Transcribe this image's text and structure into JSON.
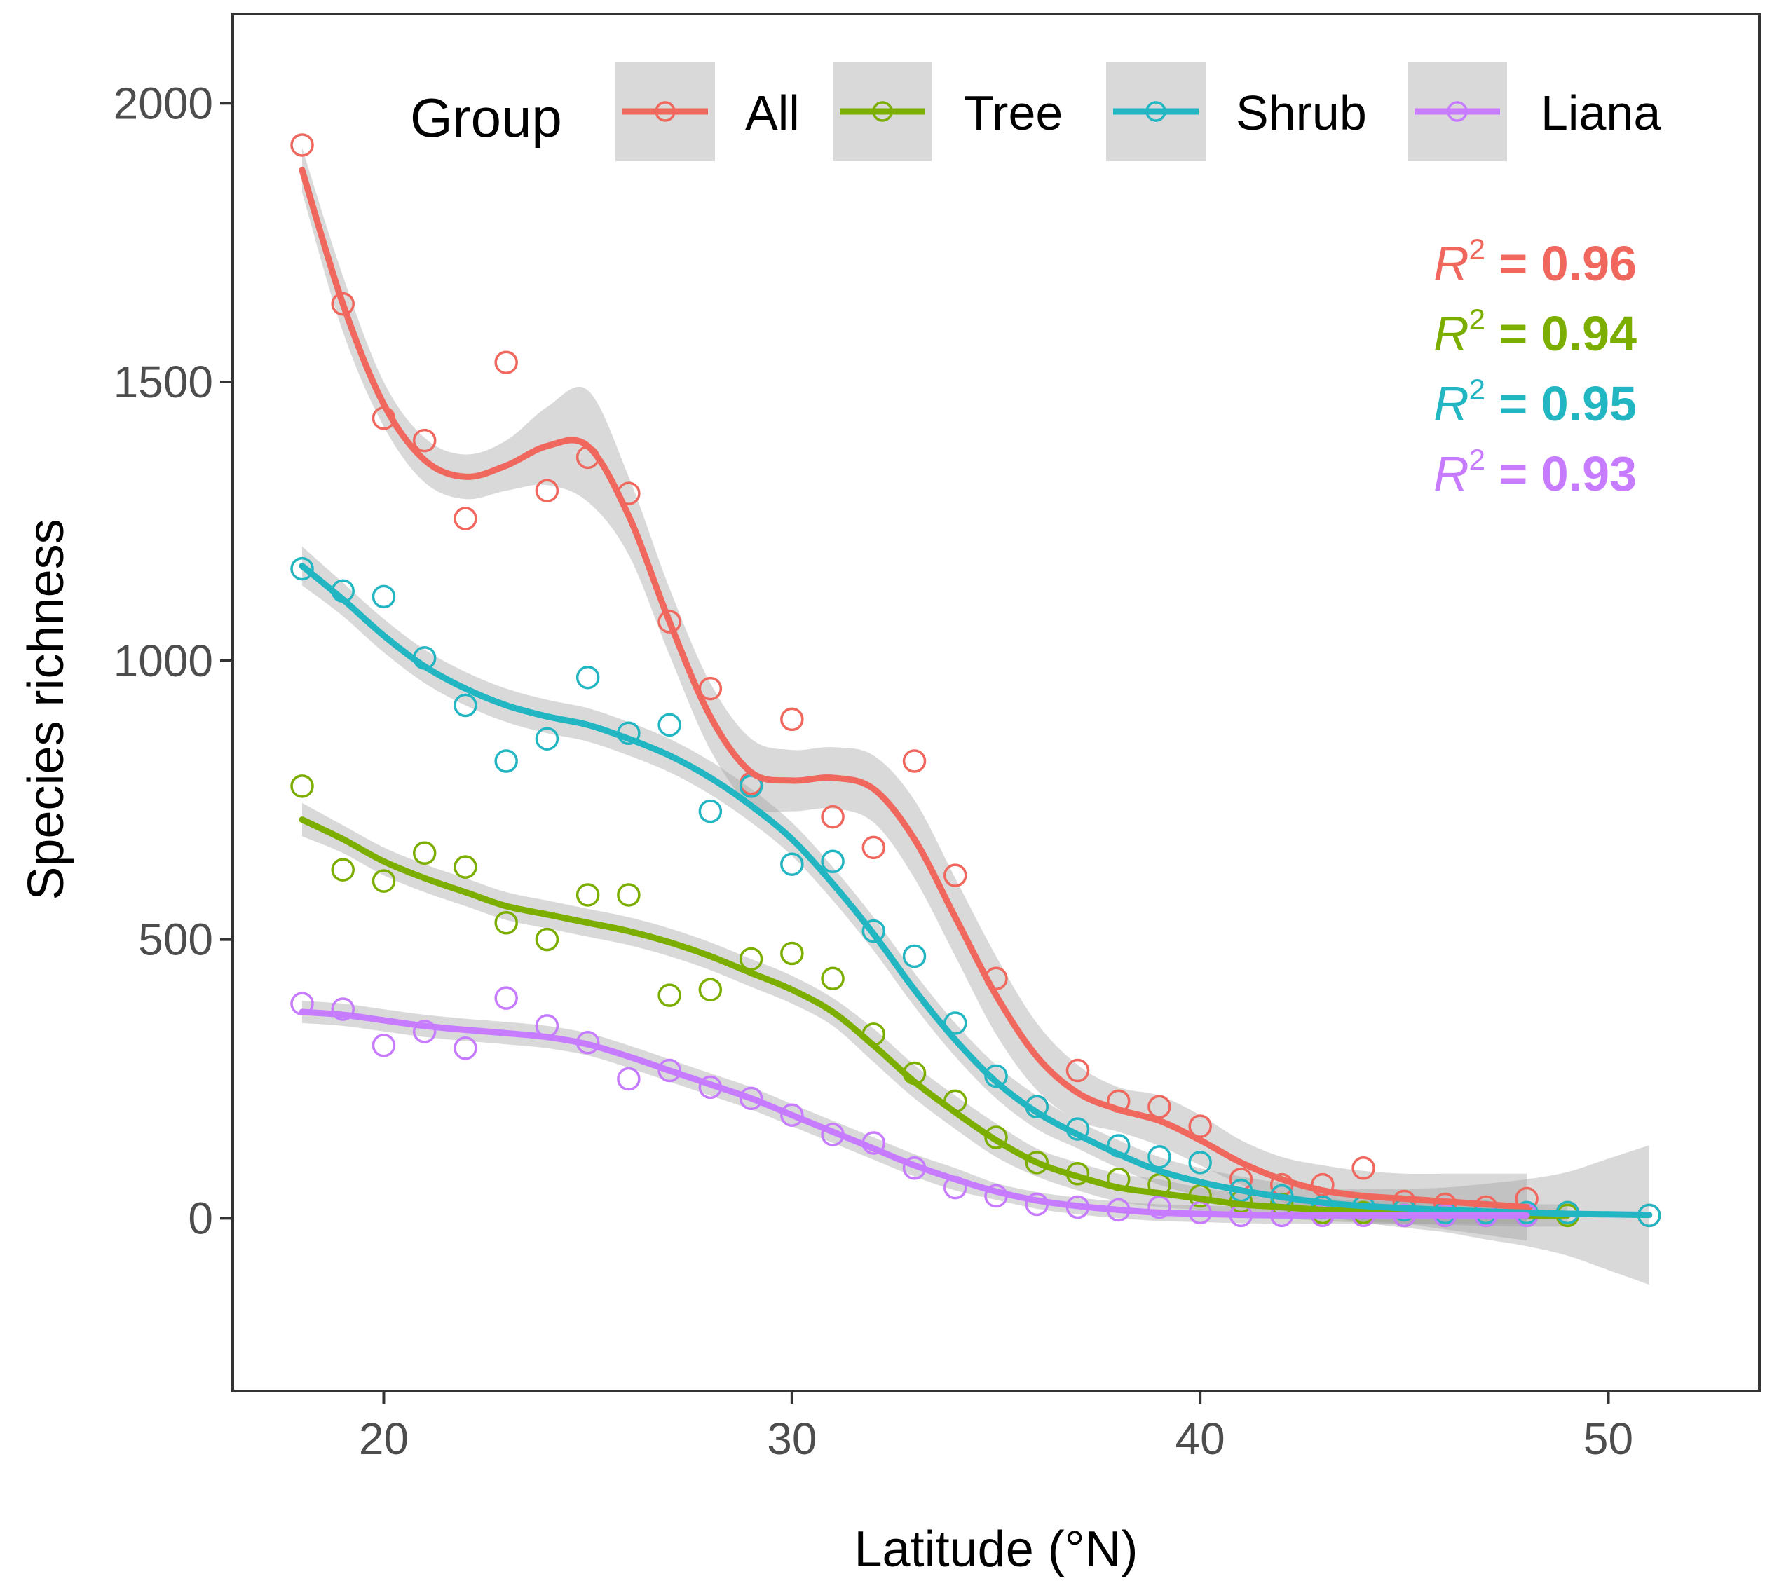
{
  "chart_data": {
    "type": "scatter",
    "title": "",
    "xlabel": "Latitude (°N)",
    "ylabel": "Species richness",
    "xlim": [
      16.3,
      53.7
    ],
    "ylim": [
      -310,
      2160
    ],
    "xticks": [
      20,
      30,
      40,
      50
    ],
    "yticks": [
      0,
      500,
      1000,
      1500,
      2000
    ],
    "grid": false,
    "legend": {
      "title": "Group",
      "position": "top",
      "entries": [
        "All",
        "Tree",
        "Shrub",
        "Liana"
      ]
    },
    "annotations": [
      {
        "series": "All",
        "prefix": "R",
        "sup": "2",
        "text": " = 0.96"
      },
      {
        "series": "Tree",
        "prefix": "R",
        "sup": "2",
        "text": " = 0.94"
      },
      {
        "series": "Shrub",
        "prefix": "R",
        "sup": "2",
        "text": " = 0.95"
      },
      {
        "series": "Liana",
        "prefix": "R",
        "sup": "2",
        "text": " = 0.93"
      }
    ],
    "series": [
      {
        "name": "All",
        "color": "#f0675e",
        "points": [
          [
            18,
            1925
          ],
          [
            19,
            1640
          ],
          [
            20,
            1435
          ],
          [
            21,
            1395
          ],
          [
            22,
            1255
          ],
          [
            23,
            1535
          ],
          [
            24,
            1305
          ],
          [
            25,
            1365
          ],
          [
            26,
            1300
          ],
          [
            27,
            1070
          ],
          [
            28,
            950
          ],
          [
            29,
            780
          ],
          [
            30,
            895
          ],
          [
            31,
            720
          ],
          [
            32,
            665
          ],
          [
            33,
            820
          ],
          [
            34,
            615
          ],
          [
            35,
            430
          ],
          [
            36,
            200
          ],
          [
            37,
            265
          ],
          [
            38,
            210
          ],
          [
            39,
            200
          ],
          [
            40,
            165
          ],
          [
            41,
            70
          ],
          [
            42,
            60
          ],
          [
            43,
            60
          ],
          [
            44,
            90
          ],
          [
            45,
            30
          ],
          [
            46,
            25
          ],
          [
            47,
            20
          ],
          [
            48,
            35
          ],
          [
            49,
            10
          ],
          [
            51,
            5
          ]
        ],
        "fit": [
          [
            18,
            1880
          ],
          [
            19,
            1640
          ],
          [
            20,
            1460
          ],
          [
            21,
            1360
          ],
          [
            22,
            1330
          ],
          [
            23,
            1350
          ],
          [
            24,
            1385
          ],
          [
            25,
            1385
          ],
          [
            26,
            1260
          ],
          [
            27,
            1070
          ],
          [
            28,
            900
          ],
          [
            29,
            800
          ],
          [
            30,
            785
          ],
          [
            31,
            790
          ],
          [
            32,
            770
          ],
          [
            33,
            680
          ],
          [
            34,
            540
          ],
          [
            35,
            400
          ],
          [
            36,
            290
          ],
          [
            37,
            225
          ],
          [
            38,
            195
          ],
          [
            39,
            175
          ],
          [
            40,
            140
          ],
          [
            41,
            100
          ],
          [
            42,
            70
          ],
          [
            43,
            50
          ],
          [
            44,
            40
          ],
          [
            45,
            35
          ],
          [
            46,
            30
          ],
          [
            47,
            25
          ],
          [
            48,
            20
          ]
        ],
        "band": [
          40,
          50,
          40,
          40,
          40,
          45,
          70,
          100,
          70,
          60,
          60,
          60,
          55,
          55,
          60,
          70,
          70,
          70,
          60,
          50,
          40,
          45,
          45,
          40,
          40,
          45,
          45,
          45,
          50,
          55,
          60
        ]
      },
      {
        "name": "Tree",
        "color": "#7cae00",
        "points": [
          [
            18,
            775
          ],
          [
            19,
            625
          ],
          [
            20,
            605
          ],
          [
            21,
            655
          ],
          [
            22,
            630
          ],
          [
            23,
            530
          ],
          [
            24,
            500
          ],
          [
            25,
            580
          ],
          [
            26,
            580
          ],
          [
            27,
            400
          ],
          [
            28,
            410
          ],
          [
            29,
            465
          ],
          [
            30,
            475
          ],
          [
            31,
            430
          ],
          [
            32,
            330
          ],
          [
            33,
            260
          ],
          [
            34,
            210
          ],
          [
            35,
            145
          ],
          [
            36,
            100
          ],
          [
            37,
            80
          ],
          [
            38,
            70
          ],
          [
            39,
            60
          ],
          [
            40,
            40
          ],
          [
            41,
            30
          ],
          [
            42,
            25
          ],
          [
            43,
            10
          ],
          [
            44,
            10
          ],
          [
            45,
            5
          ],
          [
            46,
            5
          ],
          [
            47,
            5
          ],
          [
            48,
            5
          ],
          [
            49,
            5
          ]
        ],
        "fit": [
          [
            18,
            715
          ],
          [
            19,
            680
          ],
          [
            20,
            640
          ],
          [
            21,
            610
          ],
          [
            22,
            585
          ],
          [
            23,
            560
          ],
          [
            24,
            545
          ],
          [
            25,
            530
          ],
          [
            26,
            515
          ],
          [
            27,
            495
          ],
          [
            28,
            470
          ],
          [
            29,
            440
          ],
          [
            30,
            410
          ],
          [
            31,
            370
          ],
          [
            32,
            310
          ],
          [
            33,
            245
          ],
          [
            34,
            190
          ],
          [
            35,
            140
          ],
          [
            36,
            100
          ],
          [
            37,
            75
          ],
          [
            38,
            55
          ],
          [
            39,
            45
          ],
          [
            40,
            35
          ],
          [
            41,
            25
          ],
          [
            42,
            20
          ],
          [
            43,
            15
          ],
          [
            44,
            12
          ],
          [
            45,
            10
          ],
          [
            46,
            8
          ],
          [
            47,
            6
          ],
          [
            48,
            5
          ],
          [
            49,
            5
          ]
        ],
        "band": [
          30,
          25,
          25,
          25,
          25,
          25,
          25,
          25,
          25,
          25,
          25,
          25,
          25,
          25,
          30,
          30,
          30,
          30,
          25,
          25,
          25,
          25,
          20,
          20,
          20,
          20,
          20,
          20,
          20,
          20,
          20,
          20
        ]
      },
      {
        "name": "Shrub",
        "color": "#22b5c2",
        "points": [
          [
            18,
            1165
          ],
          [
            19,
            1125
          ],
          [
            20,
            1115
          ],
          [
            21,
            1005
          ],
          [
            22,
            920
          ],
          [
            23,
            820
          ],
          [
            24,
            860
          ],
          [
            25,
            970
          ],
          [
            26,
            870
          ],
          [
            27,
            885
          ],
          [
            28,
            730
          ],
          [
            29,
            775
          ],
          [
            30,
            635
          ],
          [
            31,
            640
          ],
          [
            32,
            515
          ],
          [
            33,
            470
          ],
          [
            34,
            350
          ],
          [
            35,
            255
          ],
          [
            36,
            200
          ],
          [
            37,
            160
          ],
          [
            38,
            130
          ],
          [
            39,
            110
          ],
          [
            40,
            100
          ],
          [
            41,
            50
          ],
          [
            42,
            40
          ],
          [
            43,
            20
          ],
          [
            44,
            20
          ],
          [
            45,
            15
          ],
          [
            46,
            10
          ],
          [
            47,
            10
          ],
          [
            48,
            10
          ],
          [
            49,
            10
          ],
          [
            51,
            5
          ]
        ],
        "fit": [
          [
            18,
            1170
          ],
          [
            19,
            1110
          ],
          [
            20,
            1045
          ],
          [
            21,
            990
          ],
          [
            22,
            950
          ],
          [
            23,
            920
          ],
          [
            24,
            900
          ],
          [
            25,
            885
          ],
          [
            26,
            860
          ],
          [
            27,
            830
          ],
          [
            28,
            790
          ],
          [
            29,
            740
          ],
          [
            30,
            680
          ],
          [
            31,
            600
          ],
          [
            32,
            510
          ],
          [
            33,
            410
          ],
          [
            34,
            320
          ],
          [
            35,
            245
          ],
          [
            36,
            190
          ],
          [
            37,
            150
          ],
          [
            38,
            115
          ],
          [
            39,
            85
          ],
          [
            40,
            65
          ],
          [
            41,
            50
          ],
          [
            42,
            38
          ],
          [
            43,
            28
          ],
          [
            44,
            22
          ],
          [
            45,
            18
          ],
          [
            46,
            15
          ],
          [
            47,
            12
          ],
          [
            48,
            10
          ],
          [
            49,
            8
          ],
          [
            50,
            7
          ],
          [
            51,
            6
          ]
        ],
        "band": [
          35,
          30,
          30,
          30,
          30,
          30,
          30,
          30,
          30,
          30,
          30,
          30,
          30,
          30,
          30,
          30,
          30,
          30,
          30,
          25,
          25,
          25,
          25,
          25,
          25,
          25,
          30,
          35,
          40,
          50,
          60,
          75,
          100,
          125
        ]
      },
      {
        "name": "Liana",
        "color": "#c77cff",
        "points": [
          [
            18,
            385
          ],
          [
            19,
            375
          ],
          [
            20,
            310
          ],
          [
            21,
            335
          ],
          [
            22,
            305
          ],
          [
            23,
            395
          ],
          [
            24,
            345
          ],
          [
            25,
            315
          ],
          [
            26,
            250
          ],
          [
            27,
            265
          ],
          [
            28,
            235
          ],
          [
            29,
            215
          ],
          [
            30,
            185
          ],
          [
            31,
            150
          ],
          [
            32,
            135
          ],
          [
            33,
            90
          ],
          [
            34,
            55
          ],
          [
            35,
            40
          ],
          [
            36,
            25
          ],
          [
            37,
            20
          ],
          [
            38,
            15
          ],
          [
            39,
            20
          ],
          [
            40,
            10
          ],
          [
            41,
            5
          ],
          [
            42,
            5
          ],
          [
            43,
            5
          ],
          [
            44,
            5
          ],
          [
            45,
            5
          ],
          [
            46,
            5
          ],
          [
            47,
            5
          ],
          [
            48,
            5
          ]
        ],
        "fit": [
          [
            18,
            370
          ],
          [
            19,
            365
          ],
          [
            20,
            355
          ],
          [
            21,
            345
          ],
          [
            22,
            338
          ],
          [
            23,
            332
          ],
          [
            24,
            325
          ],
          [
            25,
            312
          ],
          [
            26,
            290
          ],
          [
            27,
            265
          ],
          [
            28,
            240
          ],
          [
            29,
            215
          ],
          [
            30,
            185
          ],
          [
            31,
            155
          ],
          [
            32,
            125
          ],
          [
            33,
            95
          ],
          [
            34,
            70
          ],
          [
            35,
            48
          ],
          [
            36,
            32
          ],
          [
            37,
            22
          ],
          [
            38,
            15
          ],
          [
            39,
            10
          ],
          [
            40,
            8
          ],
          [
            41,
            6
          ],
          [
            42,
            5
          ],
          [
            43,
            5
          ],
          [
            44,
            5
          ],
          [
            45,
            5
          ],
          [
            46,
            5
          ],
          [
            47,
            5
          ],
          [
            48,
            5
          ]
        ],
        "band": [
          20,
          20,
          20,
          20,
          20,
          20,
          20,
          20,
          20,
          20,
          20,
          20,
          20,
          20,
          20,
          20,
          20,
          15,
          15,
          15,
          15,
          15,
          15,
          15,
          15,
          15,
          15,
          15,
          15,
          15,
          15
        ]
      }
    ]
  }
}
